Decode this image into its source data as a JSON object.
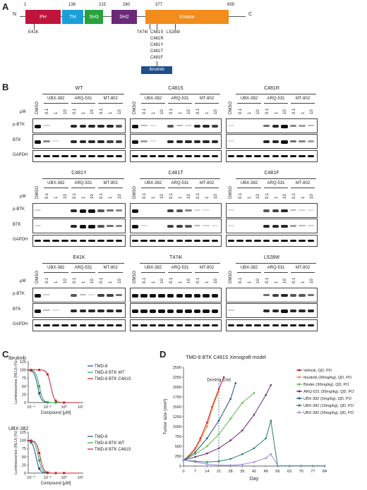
{
  "panels": {
    "a": "A",
    "b": "B",
    "c": "C",
    "d": "D"
  },
  "domainMap": {
    "n_term": "N",
    "c_term": "C",
    "positions": [
      "1",
      "138",
      "215",
      "280",
      "377",
      "659"
    ],
    "domains": [
      {
        "label": "PH",
        "color": "#c0143c"
      },
      {
        "label": "TH",
        "color": "#1aa0d8"
      },
      {
        "label": "SH3",
        "color": "#27a23d"
      },
      {
        "label": "SH2",
        "color": "#6a2a78"
      },
      {
        "label": "Kinase",
        "color": "#f28c1c"
      }
    ],
    "mutations": {
      "ph": "E41K",
      "t474": "T474I",
      "c481": [
        "C481S",
        "C481R",
        "C481Y",
        "C481T",
        "C481F"
      ],
      "l528": "L528W"
    },
    "drug": "Ibrutinib"
  },
  "blots": {
    "compounds": [
      "UBX-382",
      "ARQ-531",
      "MT-802"
    ],
    "doses": [
      "0.1",
      "1",
      "10"
    ],
    "dmso": "DMSO",
    "unit": "μM",
    "rows": [
      "p-BTK",
      "BTK",
      "GAPDH"
    ],
    "variants": [
      "WT",
      "C481S",
      "C481R",
      "C481Y",
      "C481T",
      "C481F",
      "E41K",
      "T474I",
      "L528W"
    ]
  },
  "curves": [
    {
      "title": "Ibrutinib",
      "ylabel": "Luminescence (RLU) (%)",
      "xlabel": "Compound [μM]",
      "yticks": [
        "0",
        "25",
        "50",
        "75",
        "100",
        "125"
      ],
      "xticks": [
        "10⁻⁴",
        "10⁻²",
        "10⁰",
        "10²"
      ],
      "legend": [
        "TMD-8",
        "TMD-8 BTK WT",
        "TMD-8 BTK C481S"
      ]
    },
    {
      "title": "UBX-382",
      "ylabel": "Luminescence (RLU) (%)",
      "xlabel": "Compound [μM]",
      "yticks": [
        "0",
        "25",
        "50",
        "75",
        "100",
        "125"
      ],
      "xticks": [
        "10⁻⁴",
        "10⁻²",
        "10⁰",
        "10²"
      ],
      "legend": [
        "TMD-8",
        "TMD-8 BTK WT",
        "TMD-8 BTK C481S"
      ]
    }
  ],
  "colors": {
    "tmd8": "#1f4e8c",
    "wt": "#2ea84a",
    "c481s": "#c81e2a"
  },
  "chart_data": {
    "type": "line",
    "title": "TMD-8 BTK C481S Xenograft model",
    "xlabel": "Day",
    "ylabel": "Tumor size (mm³)",
    "annotation": "Dosing End",
    "xlim": [
      0,
      84
    ],
    "ylim": [
      0,
      2500
    ],
    "xticks": [
      0,
      7,
      14,
      21,
      28,
      35,
      42,
      49,
      56,
      63,
      70,
      77,
      84
    ],
    "yticks": [
      0,
      250,
      500,
      750,
      1000,
      1250,
      1500,
      1750,
      2000,
      2250,
      2500
    ],
    "series": [
      {
        "name": "Vehicle, QD, PO",
        "color": "#c0143c",
        "x": [
          0,
          3,
          7,
          10,
          14,
          17,
          21,
          24
        ],
        "y": [
          150,
          250,
          450,
          700,
          1100,
          1500,
          1950,
          2250
        ]
      },
      {
        "name": "Ibrutinib (30mg/kg), QD, PO",
        "color": "#f28c1c",
        "x": [
          0,
          3,
          7,
          10,
          14,
          17,
          21
        ],
        "y": [
          150,
          240,
          420,
          650,
          1000,
          1450,
          1900
        ]
      },
      {
        "name": "Binder (30mg/kg), QD, PO",
        "color": "#5cb84a",
        "x": [
          0,
          7,
          14,
          21,
          28,
          35,
          42
        ],
        "y": [
          150,
          300,
          500,
          800,
          1200,
          1600,
          1850
        ]
      },
      {
        "name": "ARQ-531 (30mg/kg), QD, PO",
        "color": "#6a2a78",
        "x": [
          0,
          7,
          14,
          21,
          28,
          35,
          42,
          49,
          52
        ],
        "y": [
          150,
          230,
          320,
          450,
          650,
          900,
          1300,
          1800,
          2050
        ]
      },
      {
        "name": "UBX-382 (3mg/kg), QD, PO",
        "color": "#1f4e8c",
        "x": [
          0,
          7,
          14,
          21,
          28,
          31
        ],
        "y": [
          150,
          350,
          700,
          1150,
          1700,
          2100
        ]
      },
      {
        "name": "UBX-382 (10mg/kg), QD, PO",
        "color": "#2a7d6b",
        "x": [
          0,
          7,
          14,
          21,
          28,
          35,
          42,
          49,
          52,
          56,
          63,
          70,
          77,
          84
        ],
        "y": [
          150,
          120,
          100,
          120,
          180,
          300,
          450,
          700,
          1150,
          0,
          0,
          0,
          0,
          0
        ]
      },
      {
        "name": "UBX-382 (30mg/kg), QD, PO",
        "color": "#a18be0",
        "x": [
          0,
          7,
          14,
          21,
          28,
          35,
          42,
          49,
          52,
          56,
          63,
          70,
          77,
          84
        ],
        "y": [
          150,
          100,
          50,
          20,
          20,
          40,
          100,
          200,
          300,
          10,
          10,
          10,
          10,
          10
        ]
      }
    ]
  }
}
